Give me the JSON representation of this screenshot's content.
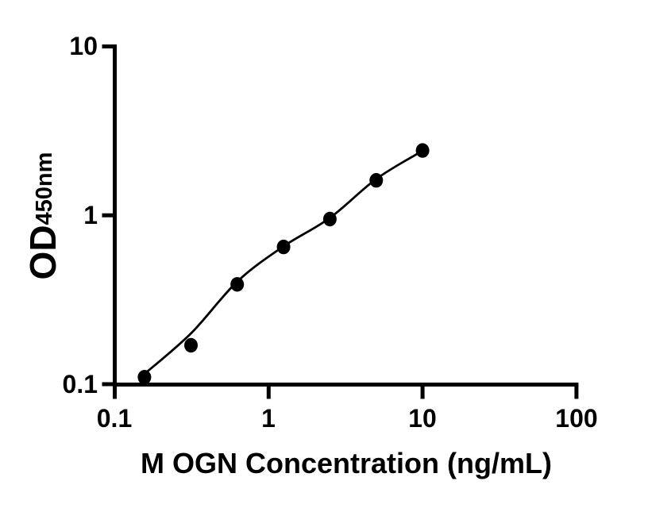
{
  "figure": {
    "background_color": "#ffffff",
    "foreground_color": "#000000"
  },
  "chart_data": {
    "type": "scatter",
    "title": "",
    "xlabel": "M OGN Concentration (ng/mL)",
    "ylabel": "OD450nm",
    "ylabel_main": "OD",
    "ylabel_sub": "450nm",
    "x_scale": "log",
    "y_scale": "log",
    "xlim": [
      0.1,
      100
    ],
    "ylim": [
      0.1,
      10
    ],
    "x_ticks": [
      0.1,
      1,
      10,
      100
    ],
    "x_tick_labels": [
      "0.1",
      "1",
      "10",
      "100"
    ],
    "y_ticks": [
      0.1,
      1,
      10
    ],
    "y_tick_labels": [
      "0.1",
      "1",
      "10"
    ],
    "grid": false,
    "legend": false,
    "series": [
      {
        "name": "standard-curve-points",
        "marker": "filled-circle",
        "color": "#000000",
        "x": [
          0.156,
          0.313,
          0.625,
          1.25,
          2.5,
          5,
          10
        ],
        "y": [
          0.11,
          0.17,
          0.39,
          0.65,
          0.95,
          1.61,
          2.42
        ]
      }
    ],
    "fit_line": {
      "name": "fitted-curve",
      "color": "#000000",
      "x": [
        0.156,
        0.313,
        0.625,
        1.25,
        2.5,
        5,
        10
      ],
      "y": [
        0.115,
        0.2,
        0.405,
        0.655,
        0.965,
        1.64,
        2.41
      ]
    }
  }
}
